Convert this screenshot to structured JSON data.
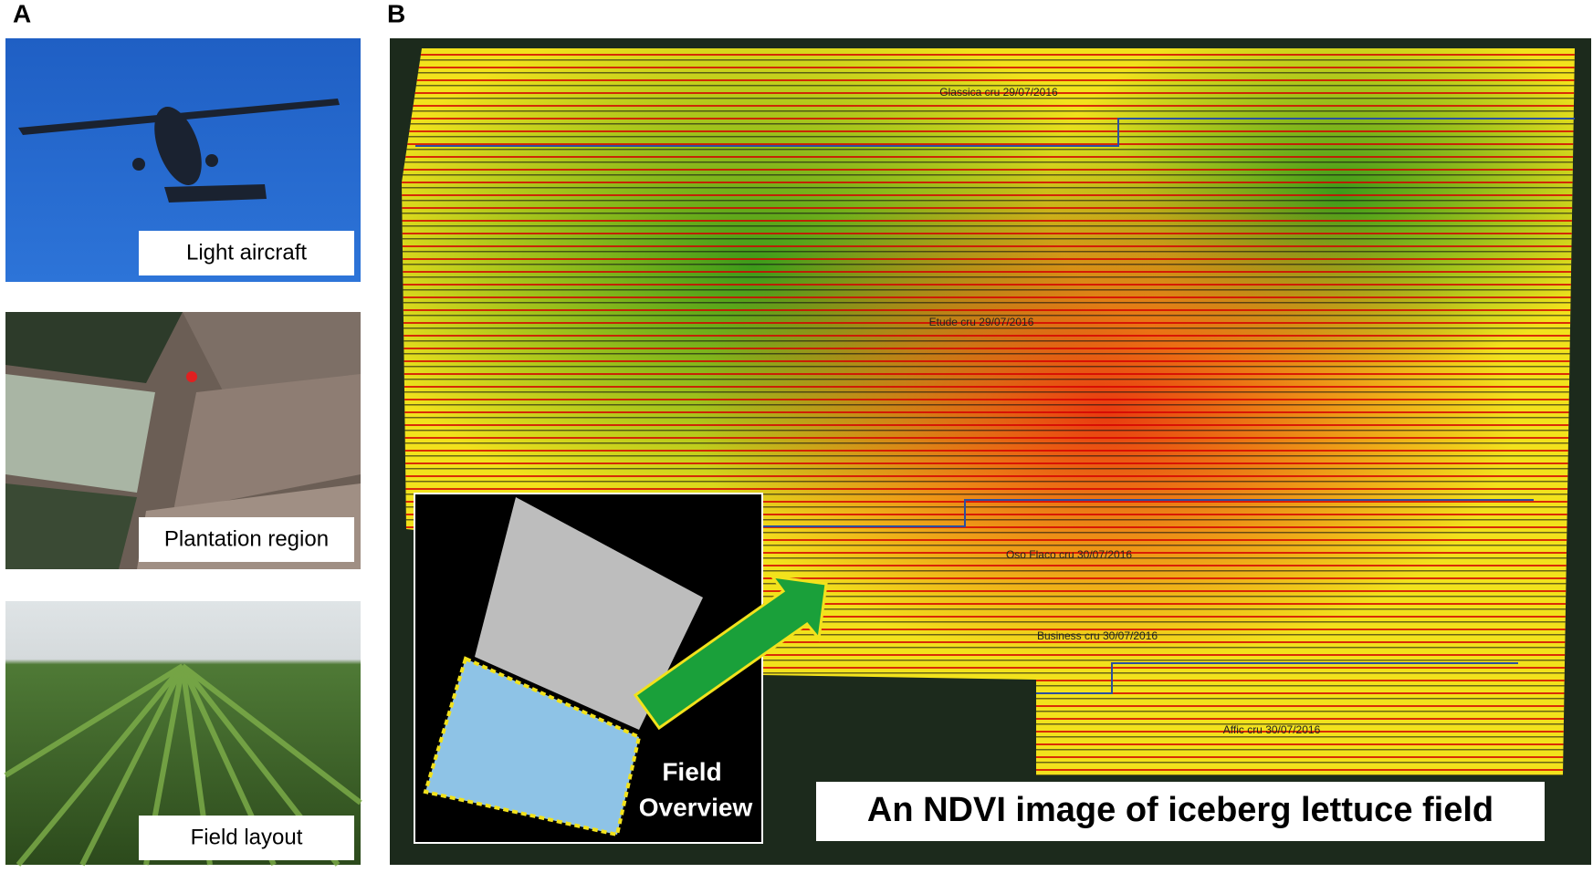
{
  "panel_a": {
    "label": "A",
    "captions": [
      "Light aircraft",
      "Plantation region",
      "Field layout"
    ]
  },
  "panel_b": {
    "label": "B",
    "field_labels": [
      "Glassica cru 29/07/2016",
      "Etude cru 29/07/2016",
      "Oso Flaco cru 30/07/2016",
      "Business cru 30/07/2016",
      "Affic cru 30/07/2016"
    ],
    "inset_label": [
      "Field",
      "Overview"
    ],
    "caption": "An NDVI image of iceberg lettuce field"
  }
}
